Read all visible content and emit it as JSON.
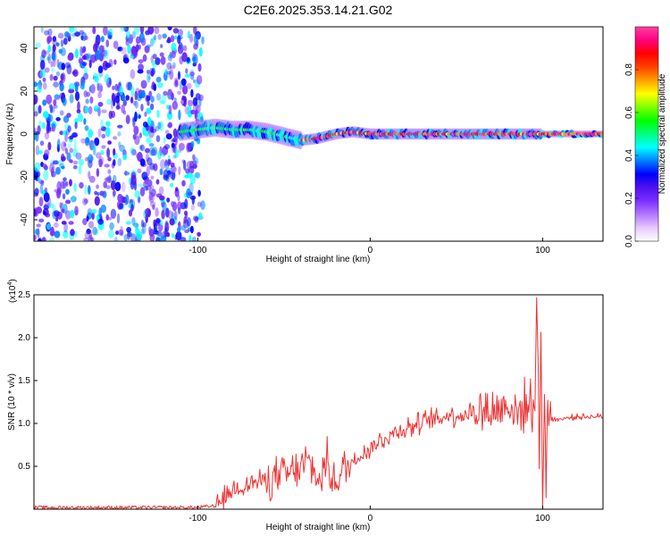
{
  "title": "C2E6.2025.353.14.21.G02",
  "chart_data": [
    {
      "type": "heatmap",
      "name": "spectrogram",
      "xlabel": "Height of straight line (km)",
      "ylabel": "Frequency (Hz)",
      "xlim": [
        -195,
        135
      ],
      "ylim": [
        -50,
        50
      ],
      "xticks": [
        -100,
        0,
        100
      ],
      "yticks": [
        -40,
        -20,
        0,
        20,
        40
      ],
      "ridge": {
        "x": [
          -110,
          -100,
          -90,
          -80,
          -70,
          -60,
          -50,
          -40,
          -30,
          -20,
          -10,
          0,
          10,
          20,
          30,
          40,
          50,
          60,
          70,
          80,
          90,
          100,
          110,
          120,
          135
        ],
        "freq": [
          1,
          2,
          3,
          2,
          2,
          1,
          -1,
          -3,
          -2,
          0,
          1,
          0,
          0,
          0,
          0,
          0,
          0,
          0,
          0,
          0,
          0,
          0,
          0,
          0,
          0
        ]
      },
      "noise_region_x": [
        -195,
        -97
      ],
      "colorbar": {
        "label": "Normalized spectral amplitude",
        "ticks": [
          "0.0",
          "0.2",
          "0.4",
          "0.6",
          "0.8"
        ],
        "range": [
          0,
          1
        ],
        "colors": [
          "#ffffff",
          "#e6c8ff",
          "#b478ff",
          "#7a30ff",
          "#5010f0",
          "#0000ff",
          "#0080ff",
          "#00ffff",
          "#00ff80",
          "#00ff00",
          "#80ff00",
          "#ffff00",
          "#ffa000",
          "#ff4000",
          "#ff0000",
          "#ff0080",
          "#ff40a0"
        ]
      }
    },
    {
      "type": "line",
      "name": "snr",
      "xlabel": "Height of straight line (km)",
      "ylabel": "SNR (10 * v/v)",
      "scale_label": "(x10",
      "scale_exp": "4",
      "scale_close": ")",
      "xlim": [
        -195,
        135
      ],
      "ylim": [
        0,
        2.5
      ],
      "xticks": [
        -100,
        0,
        100
      ],
      "yticks": [
        "0.5",
        "1.0",
        "1.5",
        "2.0",
        "2.5"
      ],
      "color": "#ee3333",
      "series": {
        "x": [
          -195,
          -150,
          -100,
          -90,
          -85,
          -80,
          -75,
          -70,
          -65,
          -60,
          -55,
          -50,
          -45,
          -40,
          -35,
          -30,
          -25,
          -20,
          -15,
          -10,
          -5,
          0,
          5,
          10,
          15,
          20,
          25,
          30,
          35,
          40,
          45,
          50,
          55,
          60,
          65,
          70,
          75,
          80,
          85,
          90,
          95,
          97,
          98,
          99,
          100,
          101,
          102,
          103,
          105,
          110,
          120,
          135
        ],
        "y": [
          0.02,
          0.02,
          0.02,
          0.04,
          0.12,
          0.22,
          0.26,
          0.3,
          0.32,
          0.34,
          0.36,
          0.4,
          0.42,
          0.5,
          0.55,
          0.32,
          0.55,
          0.3,
          0.48,
          0.55,
          0.65,
          0.72,
          0.78,
          0.85,
          0.9,
          0.95,
          0.97,
          1.0,
          1.05,
          1.05,
          1.1,
          1.1,
          1.1,
          1.15,
          1.15,
          1.15,
          1.15,
          1.25,
          1.1,
          1.2,
          1.25,
          2.3,
          0.3,
          2.1,
          0.15,
          1.3,
          0.4,
          1.25,
          1.05,
          1.05,
          1.08,
          1.08
        ]
      }
    }
  ]
}
